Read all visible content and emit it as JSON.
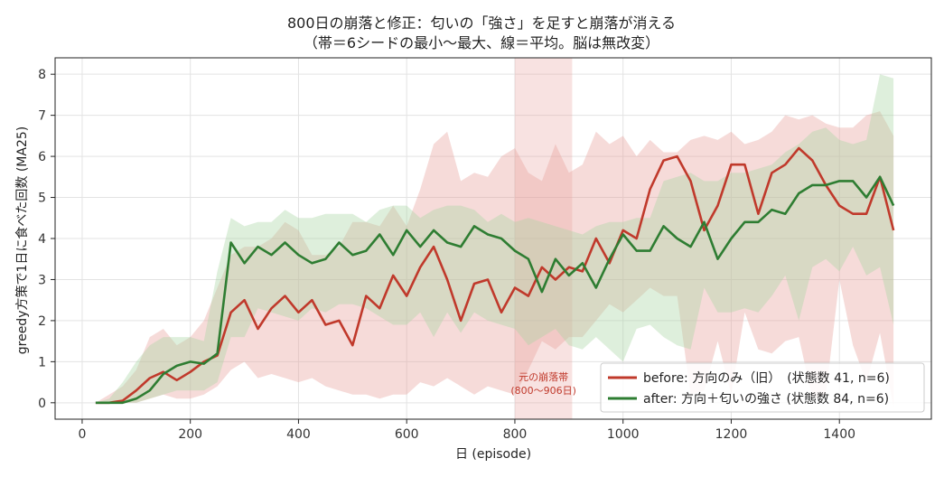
{
  "chart_data": {
    "type": "line",
    "title": "800日の崩落と修正：匂いの「強さ」を足すと崩落が消える",
    "subtitle": "（帯＝6シードの最小〜最大、線＝平均。脳は無改変）",
    "xlabel": "日 (episode)",
    "ylabel": "greedy方策で1日に食べた回数 (MA25)",
    "xlim": [
      -50,
      1570
    ],
    "ylim": [
      -0.4,
      8.4
    ],
    "xticks": [
      0,
      200,
      400,
      600,
      800,
      1000,
      1200,
      1400
    ],
    "yticks": [
      0,
      1,
      2,
      3,
      4,
      5,
      6,
      7,
      8
    ],
    "grid": true,
    "legend_position": "lower-right",
    "highlight": {
      "x_start": 800,
      "x_end": 906,
      "label_line1": "元の崩落帯",
      "label_line2": "(800〜906日)",
      "color": "#e8a09a"
    },
    "series": [
      {
        "name": "before: 方向のみ（旧）",
        "legend_label": "before: 方向のみ（旧）　(状態数 41, n=6)",
        "color": "#c0392b",
        "band_color": "#e8a09a",
        "x": [
          25,
          50,
          75,
          100,
          125,
          150,
          175,
          200,
          225,
          250,
          275,
          300,
          325,
          350,
          375,
          400,
          425,
          450,
          475,
          500,
          525,
          550,
          575,
          600,
          625,
          650,
          675,
          700,
          725,
          750,
          775,
          800,
          825,
          850,
          875,
          900,
          925,
          950,
          975,
          1000,
          1025,
          1050,
          1075,
          1100,
          1125,
          1150,
          1175,
          1200,
          1225,
          1250,
          1275,
          1300,
          1325,
          1350,
          1375,
          1400,
          1425,
          1450,
          1475,
          1500
        ],
        "mean": [
          0,
          0,
          0.05,
          0.3,
          0.6,
          0.75,
          0.55,
          0.75,
          1.0,
          1.15,
          2.2,
          2.5,
          1.8,
          2.3,
          2.6,
          2.2,
          2.5,
          1.9,
          2.0,
          1.4,
          2.6,
          2.3,
          3.1,
          2.6,
          3.3,
          3.8,
          3.0,
          2.0,
          2.9,
          3.0,
          2.2,
          2.8,
          2.6,
          3.3,
          3.0,
          3.3,
          3.2,
          4.0,
          3.4,
          4.2,
          4.0,
          5.2,
          5.9,
          6.0,
          5.4,
          4.2,
          4.8,
          5.8,
          5.8,
          4.6,
          5.6,
          5.8,
          6.2,
          5.9,
          5.3,
          4.8,
          4.6,
          4.6,
          5.5,
          4.2
        ],
        "min": [
          0,
          0,
          0,
          0,
          0.1,
          0.2,
          0.1,
          0.1,
          0.2,
          0.4,
          0.8,
          1.0,
          0.6,
          0.7,
          0.6,
          0.5,
          0.6,
          0.4,
          0.3,
          0.2,
          0.2,
          0.1,
          0.2,
          0.2,
          0.5,
          0.4,
          0.6,
          0.4,
          0.2,
          0.4,
          0.3,
          0.2,
          0.8,
          1.5,
          1.3,
          1.6,
          1.6,
          2.0,
          2.4,
          2.2,
          2.5,
          2.8,
          2.6,
          2.6,
          0.2,
          0.3,
          1.5,
          0.2,
          2.2,
          1.3,
          1.2,
          1.5,
          1.6,
          0.1,
          0.2,
          3.0,
          1.4,
          0.5,
          1.7,
          -0.1
        ],
        "max": [
          0,
          0.2,
          0.4,
          0.8,
          1.6,
          1.8,
          1.4,
          1.6,
          2.0,
          2.8,
          3.6,
          3.8,
          3.8,
          4.0,
          4.4,
          4.2,
          3.6,
          3.6,
          3.8,
          4.4,
          4.4,
          4.3,
          4.8,
          4.3,
          5.2,
          6.3,
          6.6,
          5.4,
          5.6,
          5.5,
          6.0,
          6.2,
          5.6,
          5.4,
          6.3,
          5.6,
          5.8,
          6.6,
          6.3,
          6.5,
          6.0,
          6.4,
          6.1,
          6.1,
          6.4,
          6.5,
          6.4,
          6.6,
          6.3,
          6.4,
          6.6,
          7.0,
          6.9,
          7.0,
          6.8,
          6.7,
          6.7,
          7.0,
          7.1,
          6.5
        ]
      },
      {
        "name": "after: 方向＋匂いの強さ",
        "legend_label": "after: 方向＋匂いの強さ  (状態数 84, n=6)",
        "color": "#2e7d32",
        "band_color": "#a8d5a2",
        "x": [
          25,
          50,
          75,
          100,
          125,
          150,
          175,
          200,
          225,
          250,
          275,
          300,
          325,
          350,
          375,
          400,
          425,
          450,
          475,
          500,
          525,
          550,
          575,
          600,
          625,
          650,
          675,
          700,
          725,
          750,
          775,
          800,
          825,
          850,
          875,
          900,
          925,
          950,
          975,
          1000,
          1025,
          1050,
          1075,
          1100,
          1125,
          1150,
          1175,
          1200,
          1225,
          1250,
          1275,
          1300,
          1325,
          1350,
          1375,
          1400,
          1425,
          1450,
          1475,
          1500
        ],
        "mean": [
          0,
          0,
          0,
          0.1,
          0.3,
          0.7,
          0.9,
          1.0,
          0.95,
          1.2,
          3.9,
          3.4,
          3.8,
          3.6,
          3.9,
          3.6,
          3.4,
          3.5,
          3.9,
          3.6,
          3.7,
          4.1,
          3.6,
          4.2,
          3.8,
          4.2,
          3.9,
          3.8,
          4.3,
          4.1,
          4.0,
          3.7,
          3.5,
          2.7,
          3.5,
          3.1,
          3.4,
          2.8,
          3.5,
          4.1,
          3.7,
          3.7,
          4.3,
          4.0,
          3.8,
          4.4,
          3.5,
          4.0,
          4.4,
          4.4,
          4.7,
          4.6,
          5.1,
          5.3,
          5.3,
          5.4,
          5.4,
          5.0,
          5.5,
          4.8
        ],
        "min": [
          0,
          0,
          0,
          0,
          0.1,
          0.2,
          0.3,
          0.3,
          0.3,
          0.5,
          1.6,
          1.6,
          2.3,
          2.2,
          2.1,
          2.0,
          2.3,
          2.2,
          2.4,
          2.4,
          2.3,
          2.1,
          1.9,
          1.9,
          2.2,
          1.6,
          2.2,
          1.7,
          2.2,
          2.0,
          1.9,
          1.8,
          1.4,
          1.6,
          1.8,
          1.4,
          1.3,
          1.6,
          1.3,
          1.0,
          1.8,
          1.9,
          1.6,
          1.4,
          1.3,
          2.8,
          2.2,
          2.2,
          2.3,
          2.2,
          2.6,
          3.1,
          2.0,
          3.3,
          3.5,
          3.2,
          3.8,
          3.1,
          3.3,
          1.9
        ],
        "max": [
          0,
          0.1,
          0.5,
          1.0,
          1.4,
          1.6,
          1.6,
          1.6,
          1.5,
          3.2,
          4.5,
          4.3,
          4.4,
          4.4,
          4.7,
          4.5,
          4.5,
          4.6,
          4.6,
          4.6,
          4.4,
          4.7,
          4.8,
          4.8,
          4.5,
          4.7,
          4.8,
          4.8,
          4.7,
          4.4,
          4.6,
          4.4,
          4.5,
          4.4,
          4.3,
          4.2,
          4.1,
          4.3,
          4.4,
          4.4,
          4.5,
          4.5,
          5.4,
          5.5,
          5.6,
          5.4,
          5.4,
          5.6,
          5.6,
          5.7,
          5.8,
          6.1,
          6.3,
          6.6,
          6.7,
          6.4,
          6.3,
          6.4,
          8.0,
          7.9
        ]
      }
    ]
  }
}
